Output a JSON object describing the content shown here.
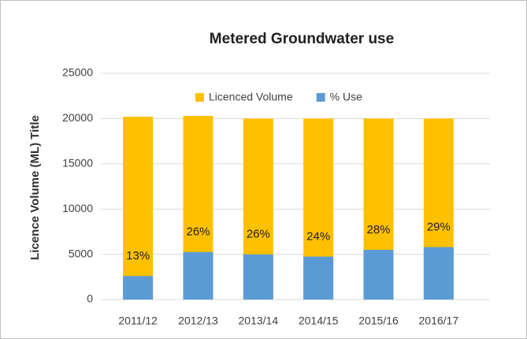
{
  "chart_data": {
    "type": "bar",
    "title": "Metered Groundwater use",
    "y_label": "Licence Volume (ML) Title",
    "categories": [
      "2011/12",
      "2012/13",
      "2013/14",
      "2014/15",
      "2015/16",
      "2016/17"
    ],
    "series": [
      {
        "name": "Licenced Volume",
        "color": "#ffc000",
        "values": [
          20200,
          20300,
          20000,
          20000,
          20000,
          20000
        ]
      },
      {
        "name": "% Use",
        "color": "#5b9bd5",
        "values": [
          2600,
          5250,
          5000,
          4750,
          5500,
          5800
        ],
        "labels": [
          "13%",
          "26%",
          "26%",
          "24%",
          "28%",
          "29%"
        ]
      }
    ],
    "overlap": true,
    "ylim": [
      0,
      25000
    ],
    "yticks": [
      0,
      5000,
      10000,
      15000,
      20000,
      25000
    ],
    "grid": true,
    "legend": "top"
  }
}
